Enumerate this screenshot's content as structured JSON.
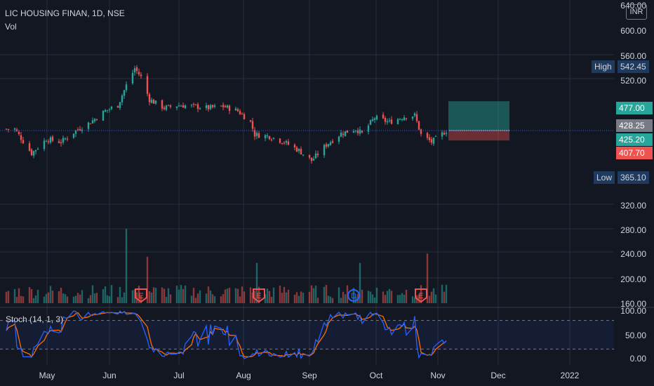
{
  "header": {
    "symbol_title": "LIC HOUSING FINAN, 1D, NSE",
    "volume_label": "Vol"
  },
  "currency_button": "INR",
  "stoch": {
    "label": "Stoch (14, 1, 3)",
    "upper_band": 80,
    "lower_band": 20,
    "ticks": [
      "100.00",
      "50.00",
      "0.00"
    ]
  },
  "price_axis": {
    "ticks": [
      "640.00",
      "600.00",
      "560.00",
      "520.00",
      "320.00",
      "280.00",
      "240.00",
      "200.00",
      "160.00"
    ]
  },
  "time_axis": {
    "ticks": [
      "May",
      "Jun",
      "Jul",
      "Aug",
      "Sep",
      "Oct",
      "Nov",
      "Dec",
      "2022"
    ]
  },
  "badges": {
    "high_label": "High",
    "high_value": "542.45",
    "low_label": "Low",
    "low_value": "365.10",
    "target_value": "477.00",
    "last_value": "428.25",
    "current_value": "425.20",
    "stop_value": "407.70"
  },
  "events": [
    {
      "letter": "E",
      "date": "2021-06-11"
    },
    {
      "letter": "E",
      "date": "2021-08-06"
    },
    {
      "letter": "D",
      "date": "2021-09-20"
    },
    {
      "letter": "E",
      "date": "2021-10-22"
    }
  ],
  "position": {
    "entry": 425.2,
    "target": 477.0,
    "stop": 407.7,
    "start_date": "2021-11-04",
    "end_date": "2021-12-03"
  },
  "colors": {
    "up": "#26a69a",
    "down": "#ef5350",
    "bg": "#131722",
    "text": "#d1d4dc",
    "stoch_k": "#2962ff",
    "stoch_d": "#ff6d00",
    "badge_blue": "#1e3a5f",
    "grid": "#2a2e39"
  },
  "chart_data": {
    "type": "candlestick",
    "title": "LIC HOUSING FINAN, 1D, NSE",
    "ylim": [
      160,
      640
    ],
    "x_axis_start": "2021-04-06",
    "anchors": [
      [
        "2021-04-12",
        428
      ],
      [
        "2021-04-20",
        385
      ],
      [
        "2021-04-27",
        410
      ],
      [
        "2021-05-04",
        405
      ],
      [
        "2021-05-11",
        425
      ],
      [
        "2021-05-18",
        440
      ],
      [
        "2021-05-25",
        460
      ],
      [
        "2021-05-31",
        470
      ],
      [
        "2021-06-04",
        505
      ],
      [
        "2021-06-08",
        535
      ],
      [
        "2021-06-11",
        520
      ],
      [
        "2021-06-15",
        480
      ],
      [
        "2021-06-22",
        465
      ],
      [
        "2021-06-29",
        470
      ],
      [
        "2021-07-06",
        468
      ],
      [
        "2021-07-13",
        465
      ],
      [
        "2021-07-20",
        468
      ],
      [
        "2021-07-27",
        460
      ],
      [
        "2021-08-02",
        440
      ],
      [
        "2021-08-04",
        418
      ],
      [
        "2021-08-11",
        415
      ],
      [
        "2021-08-18",
        405
      ],
      [
        "2021-08-25",
        390
      ],
      [
        "2021-08-31",
        372
      ],
      [
        "2021-09-07",
        400
      ],
      [
        "2021-09-14",
        420
      ],
      [
        "2021-09-21",
        428
      ],
      [
        "2021-09-24",
        420
      ],
      [
        "2021-09-30",
        448
      ],
      [
        "2021-10-07",
        440
      ],
      [
        "2021-10-14",
        450
      ],
      [
        "2021-10-19",
        452
      ],
      [
        "2021-10-22",
        418
      ],
      [
        "2021-10-27",
        405
      ],
      [
        "2021-11-03",
        425
      ]
    ],
    "volume_spikes": [
      [
        "2021-06-04",
        280
      ],
      [
        "2021-06-14",
        235
      ],
      [
        "2021-08-05",
        225
      ],
      [
        "2021-09-23",
        225
      ],
      [
        "2021-10-25",
        240
      ]
    ],
    "volume_ylim": [
      160,
      280
    ],
    "stoch_ylim": [
      0,
      100
    ]
  }
}
